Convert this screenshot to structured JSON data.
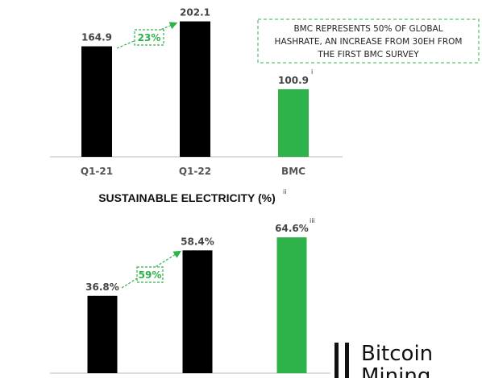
{
  "colors": {
    "bar_black": "#000000",
    "bar_green": "#2db34a",
    "accent_green": "#2db34a",
    "axis": "#bbbbbb"
  },
  "chart_data": [
    {
      "type": "bar",
      "title": "",
      "categories": [
        "Q1-21",
        "Q1-22",
        "BMC"
      ],
      "values": [
        164.9,
        202.1,
        100.9
      ],
      "value_labels": [
        "164.9",
        "202.1",
        "100.9"
      ],
      "bar_colors": [
        "#000000",
        "#000000",
        "#2db34a"
      ],
      "footnotes": [
        "",
        "",
        "i"
      ],
      "growth_label": "23%",
      "annotation": [
        "BMC REPRESENTS 50% OF GLOBAL",
        "HASHRATE, AN INCREASE FROM 30EH FROM",
        "THE FIRST BMC SURVEY"
      ],
      "ylim": [
        0,
        210
      ]
    },
    {
      "type": "bar",
      "title": "SUSTAINABLE ELECTRICITY (%)",
      "title_footnote": "ii",
      "values": [
        36.8,
        58.4,
        64.6
      ],
      "value_labels": [
        "36.8%",
        "58.4%",
        "64.6%"
      ],
      "bar_colors": [
        "#000000",
        "#000000",
        "#2db34a"
      ],
      "footnotes": [
        "",
        "",
        "iii"
      ],
      "growth_label": "59%",
      "ylim": [
        0,
        70
      ]
    }
  ],
  "brand": {
    "line1": "Bitcoin",
    "line2": "Mining"
  }
}
